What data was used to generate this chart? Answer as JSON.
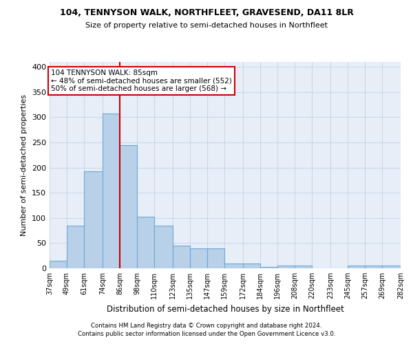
{
  "title": "104, TENNYSON WALK, NORTHFLEET, GRAVESEND, DA11 8LR",
  "subtitle": "Size of property relative to semi-detached houses in Northfleet",
  "xlabel": "Distribution of semi-detached houses by size in Northfleet",
  "ylabel": "Number of semi-detached properties",
  "footnote1": "Contains HM Land Registry data © Crown copyright and database right 2024.",
  "footnote2": "Contains public sector information licensed under the Open Government Licence v3.0.",
  "bar_left_edges": [
    37,
    49,
    61,
    74,
    86,
    98,
    110,
    123,
    135,
    147,
    159,
    172,
    184,
    196,
    208,
    220,
    233,
    245,
    257,
    269
  ],
  "bar_widths": [
    12,
    12,
    13,
    12,
    12,
    12,
    13,
    12,
    12,
    12,
    13,
    12,
    12,
    12,
    12,
    13,
    12,
    12,
    12,
    13
  ],
  "bar_heights": [
    15,
    85,
    193,
    308,
    245,
    103,
    85,
    45,
    40,
    40,
    10,
    10,
    3,
    5,
    5,
    0,
    0,
    5,
    5,
    5
  ],
  "bar_color": "#b8d0e8",
  "bar_edge_color": "#6aaad4",
  "grid_color": "#c8d8ec",
  "bg_color": "#e8eef8",
  "property_line_x": 86,
  "property_line_color": "#cc0000",
  "annotation_text": "104 TENNYSON WALK: 85sqm\n← 48% of semi-detached houses are smaller (552)\n50% of semi-detached houses are larger (568) →",
  "annotation_box_color": "#cc0000",
  "ylim": [
    0,
    410
  ],
  "yticks": [
    0,
    50,
    100,
    150,
    200,
    250,
    300,
    350,
    400
  ],
  "xtick_labels": [
    "37sqm",
    "49sqm",
    "61sqm",
    "74sqm",
    "86sqm",
    "98sqm",
    "110sqm",
    "123sqm",
    "135sqm",
    "147sqm",
    "159sqm",
    "172sqm",
    "184sqm",
    "196sqm",
    "208sqm",
    "220sqm",
    "233sqm",
    "245sqm",
    "257sqm",
    "269sqm",
    "282sqm"
  ]
}
